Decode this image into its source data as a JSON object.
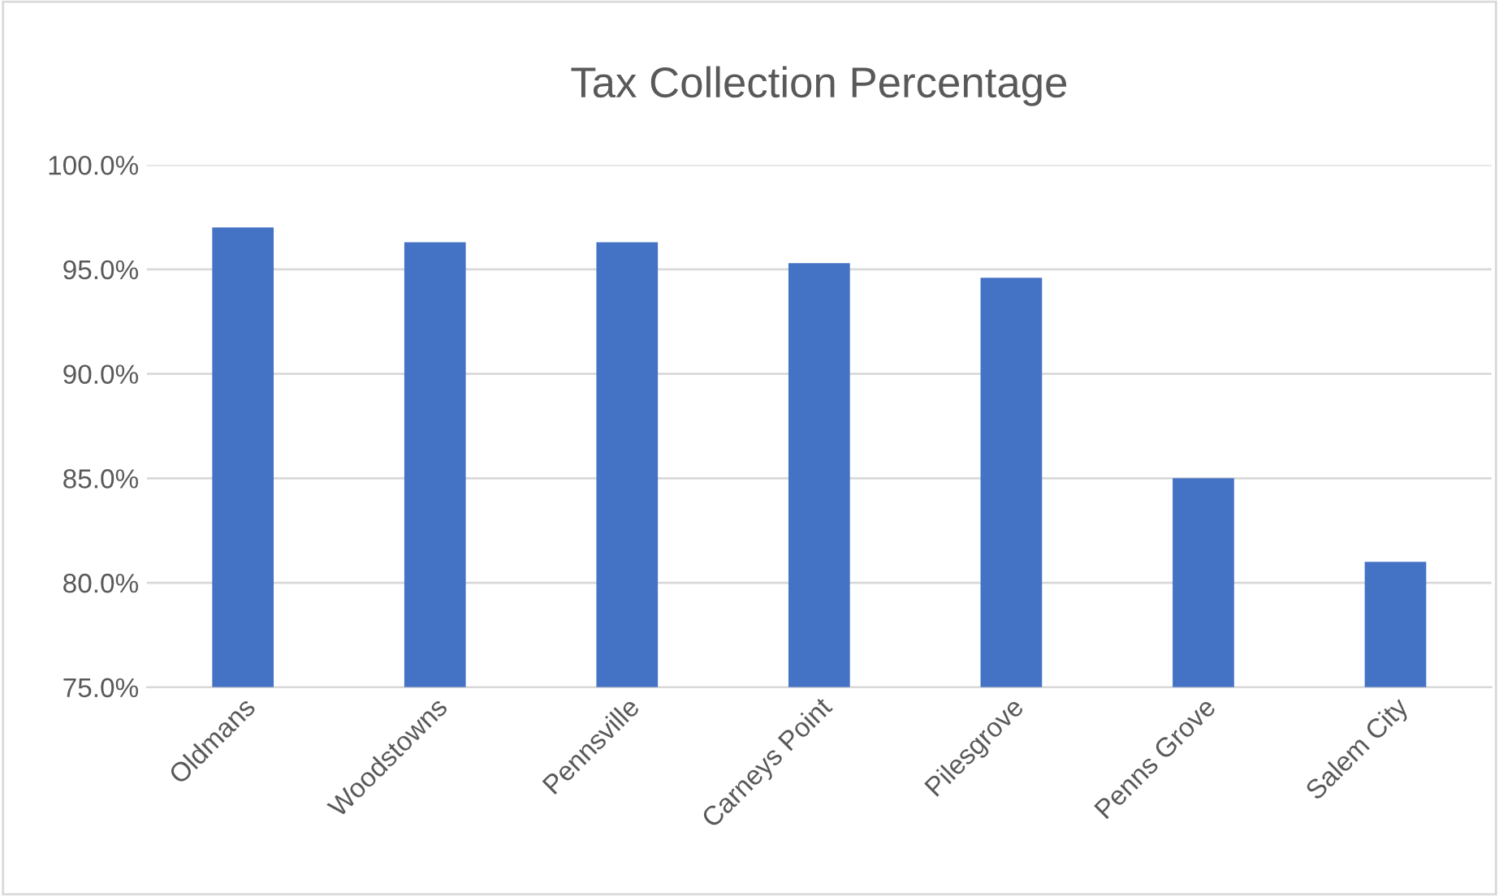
{
  "chart_data": {
    "type": "bar",
    "title": "Tax Collection Percentage",
    "categories": [
      "Oldmans",
      "Woodstowns",
      "Pennsville",
      "Carneys Point",
      "Pilesgrove",
      "Penns Grove",
      "Salem City"
    ],
    "values": [
      97.0,
      96.3,
      96.3,
      95.3,
      94.6,
      85.0,
      81.0
    ],
    "color": "#4472c4",
    "ylim": [
      75,
      100
    ],
    "yticks": [
      {
        "value": 75,
        "label": "75.0%"
      },
      {
        "value": 80,
        "label": "80.0%"
      },
      {
        "value": 85,
        "label": "85.0%"
      },
      {
        "value": 90,
        "label": "90.0%"
      },
      {
        "value": 95,
        "label": "95.0%"
      },
      {
        "value": 100,
        "label": "100.0%"
      }
    ],
    "grid": "y"
  }
}
